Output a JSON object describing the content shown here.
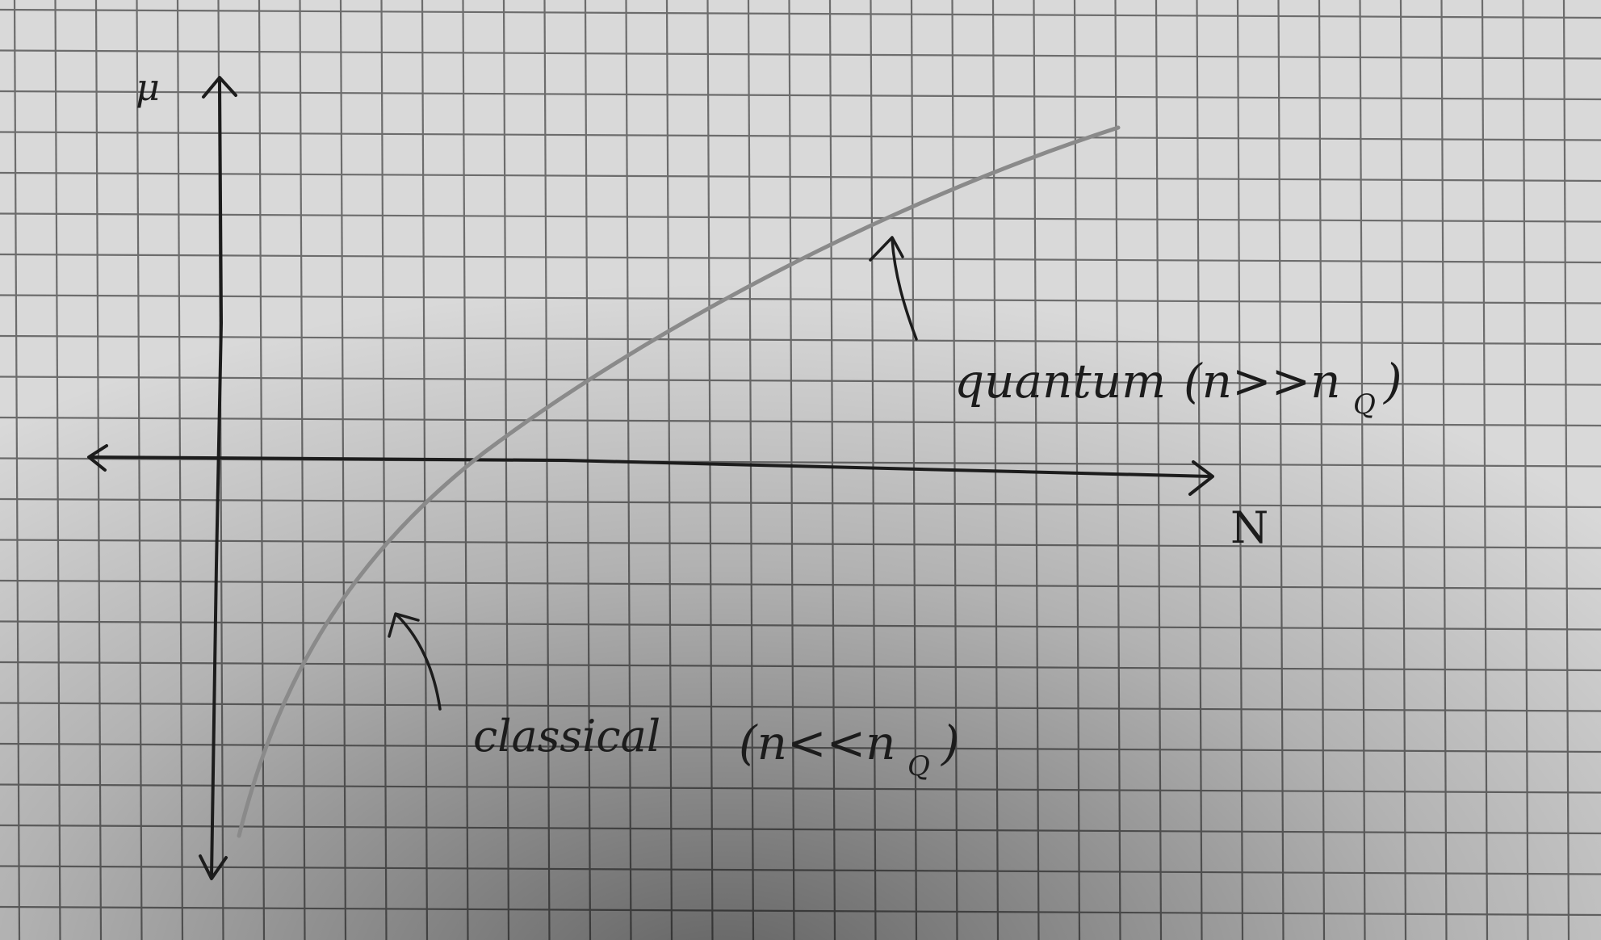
{
  "diagram": {
    "y_axis_label": "μ",
    "x_axis_label": "N",
    "annotations": {
      "upper_word": "quantum",
      "upper_condition": "(n>>n",
      "upper_subscript": "Q",
      "upper_close": ")",
      "lower_word": "classical",
      "lower_condition": "(n<<n",
      "lower_subscript": "Q",
      "lower_close": ")"
    },
    "colors": {
      "paper": "#d9d9d9",
      "grid": "#5a5a5a",
      "ink": "#1c1c1c",
      "pencil": "#8a8a8a"
    }
  }
}
